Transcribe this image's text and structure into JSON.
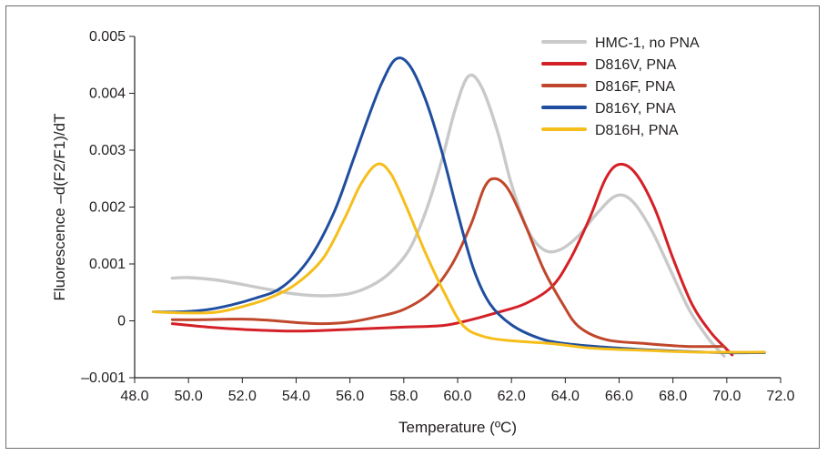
{
  "chart_data": {
    "type": "line",
    "xlabel": "Temperature (ºC)",
    "ylabel": "Fluorescence –d(F2/F1)/dT",
    "xlim": [
      48.0,
      72.0
    ],
    "ylim": [
      -0.001,
      0.005
    ],
    "x_ticks": [
      "48.0",
      "50.0",
      "52.0",
      "54.0",
      "56.0",
      "58.0",
      "60.0",
      "62.0",
      "64.0",
      "66.0",
      "68.0",
      "70.0",
      "72.0"
    ],
    "y_ticks": [
      "–0.001",
      "0",
      "0.001",
      "0.002",
      "0.003",
      "0.004",
      "0.005"
    ],
    "legend_position": "top-right",
    "series": [
      {
        "name": "HMC-1, no PNA",
        "color": "#c9c9c9",
        "points": [
          [
            49.4,
            0.00075
          ],
          [
            50.0,
            0.00076
          ],
          [
            51.0,
            0.00072
          ],
          [
            52.0,
            0.00064
          ],
          [
            53.0,
            0.00055
          ],
          [
            54.0,
            0.00047
          ],
          [
            55.0,
            0.00044
          ],
          [
            56.0,
            0.00048
          ],
          [
            56.8,
            0.00062
          ],
          [
            57.5,
            0.00085
          ],
          [
            58.2,
            0.00125
          ],
          [
            58.8,
            0.0019
          ],
          [
            59.4,
            0.0028
          ],
          [
            59.9,
            0.0037
          ],
          [
            60.4,
            0.0043
          ],
          [
            60.9,
            0.0041
          ],
          [
            61.5,
            0.0033
          ],
          [
            62.0,
            0.0024
          ],
          [
            62.6,
            0.0016
          ],
          [
            63.2,
            0.00125
          ],
          [
            63.8,
            0.00125
          ],
          [
            64.5,
            0.0015
          ],
          [
            65.2,
            0.0019
          ],
          [
            65.9,
            0.0022
          ],
          [
            66.5,
            0.0021
          ],
          [
            67.2,
            0.0016
          ],
          [
            67.9,
            0.0009
          ],
          [
            68.6,
            0.0002
          ],
          [
            69.3,
            -0.0003
          ],
          [
            69.9,
            -0.00062
          ]
        ]
      },
      {
        "name": "D816V, PNA",
        "color": "#d42027",
        "points": [
          [
            49.4,
            -5e-05
          ],
          [
            50.5,
            -0.0001
          ],
          [
            52.0,
            -0.00015
          ],
          [
            54.0,
            -0.00018
          ],
          [
            56.0,
            -0.00015
          ],
          [
            58.0,
            -0.00011
          ],
          [
            59.5,
            -8e-05
          ],
          [
            60.5,
            2e-05
          ],
          [
            61.5,
            0.00015
          ],
          [
            62.5,
            0.0003
          ],
          [
            63.5,
            0.0006
          ],
          [
            64.2,
            0.0011
          ],
          [
            64.9,
            0.0018
          ],
          [
            65.5,
            0.0025
          ],
          [
            66.0,
            0.00275
          ],
          [
            66.6,
            0.0026
          ],
          [
            67.3,
            0.002
          ],
          [
            68.0,
            0.0011
          ],
          [
            68.7,
            0.0003
          ],
          [
            69.4,
            -0.0002
          ],
          [
            70.0,
            -0.0005
          ],
          [
            70.2,
            -0.0006
          ]
        ]
      },
      {
        "name": "D816F, PNA",
        "color": "#c0472b",
        "points": [
          [
            49.4,
            2e-05
          ],
          [
            50.5,
            2e-05
          ],
          [
            52.0,
            3e-05
          ],
          [
            53.0,
            1e-05
          ],
          [
            54.0,
            -3e-05
          ],
          [
            55.0,
            -5e-05
          ],
          [
            56.0,
            -2e-05
          ],
          [
            57.0,
            7e-05
          ],
          [
            58.0,
            0.0002
          ],
          [
            59.0,
            0.0005
          ],
          [
            59.8,
            0.001
          ],
          [
            60.5,
            0.0017
          ],
          [
            61.0,
            0.00235
          ],
          [
            61.4,
            0.0025
          ],
          [
            61.9,
            0.0023
          ],
          [
            62.5,
            0.0017
          ],
          [
            63.2,
            0.0009
          ],
          [
            63.9,
            0.0003
          ],
          [
            64.5,
            -0.0001
          ],
          [
            65.5,
            -0.00033
          ],
          [
            67.0,
            -0.0004
          ],
          [
            68.5,
            -0.00045
          ],
          [
            69.9,
            -0.00045
          ]
        ]
      },
      {
        "name": "D816Y, PNA",
        "color": "#1f4e9f",
        "points": [
          [
            48.7,
            0.00016
          ],
          [
            49.8,
            0.00016
          ],
          [
            51.0,
            0.00022
          ],
          [
            52.5,
            0.0004
          ],
          [
            53.5,
            0.0006
          ],
          [
            54.5,
            0.0011
          ],
          [
            55.4,
            0.0019
          ],
          [
            56.1,
            0.0028
          ],
          [
            56.7,
            0.0036
          ],
          [
            57.2,
            0.0042
          ],
          [
            57.7,
            0.0046
          ],
          [
            58.2,
            0.0045
          ],
          [
            58.8,
            0.0039
          ],
          [
            59.4,
            0.003
          ],
          [
            60.0,
            0.0019
          ],
          [
            60.6,
            0.0009
          ],
          [
            61.2,
            0.0003
          ],
          [
            62.0,
            -7e-05
          ],
          [
            63.0,
            -0.0003
          ],
          [
            64.0,
            -0.0004
          ],
          [
            66.0,
            -0.00048
          ],
          [
            68.0,
            -0.00053
          ],
          [
            70.0,
            -0.00056
          ],
          [
            71.4,
            -0.00056
          ]
        ]
      },
      {
        "name": "D816H, PNA",
        "color": "#f6be1a",
        "points": [
          [
            48.7,
            0.00016
          ],
          [
            49.8,
            0.00014
          ],
          [
            51.0,
            0.00015
          ],
          [
            52.0,
            0.00025
          ],
          [
            53.0,
            0.0004
          ],
          [
            54.0,
            0.00065
          ],
          [
            55.0,
            0.0011
          ],
          [
            55.8,
            0.0018
          ],
          [
            56.4,
            0.0024
          ],
          [
            57.0,
            0.00275
          ],
          [
            57.5,
            0.0026
          ],
          [
            58.1,
            0.002
          ],
          [
            58.8,
            0.0012
          ],
          [
            59.5,
            0.0005
          ],
          [
            60.2,
            -8e-05
          ],
          [
            61.0,
            -0.00028
          ],
          [
            62.0,
            -0.00035
          ],
          [
            63.5,
            -0.0004
          ],
          [
            65.0,
            -0.00048
          ],
          [
            67.0,
            -0.00052
          ],
          [
            69.0,
            -0.00055
          ],
          [
            71.4,
            -0.00055
          ]
        ]
      }
    ]
  }
}
